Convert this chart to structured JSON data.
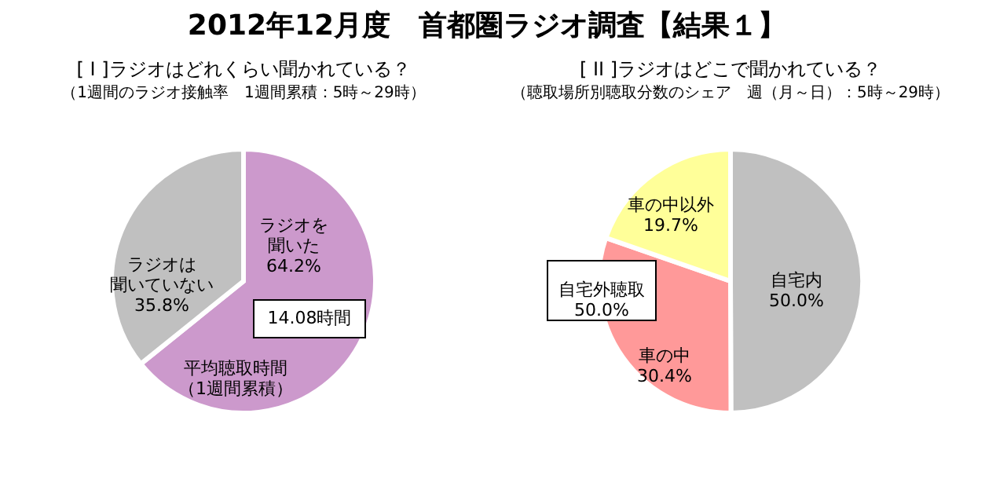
{
  "chart_data": [
    {
      "type": "pie",
      "title": "[ I ]ラジオはどれくらい聞かれている？",
      "subtitle": "（1週間のラジオ接触率　1週間累積：5時～29時）",
      "categories": [
        "ラジオを聞いた",
        "ラジオは聞いていない"
      ],
      "values": [
        64.2,
        35.8
      ],
      "colors": [
        "#cc99cc",
        "#c0c0c0"
      ],
      "value_labels": [
        "64.2%",
        "35.8%"
      ],
      "legend": false,
      "annotations": [
        "2012年12月度　首都圏ラジオ調査【結果１】",
        "14.08時間",
        "平均聴取時間（1週間累積）"
      ]
    },
    {
      "type": "pie",
      "title": "[ II ]ラジオはどこで聞かれている？",
      "subtitle": "（聴取場所別聴取分数のシェア　週（月～日）：5時～29時）",
      "categories": [
        "自宅内",
        "車の中",
        "車の中以外"
      ],
      "values": [
        50.0,
        30.4,
        19.7
      ],
      "colors": [
        "#c0c0c0",
        "#ff9999",
        "#ffff99"
      ],
      "value_labels": [
        "50.0%",
        "30.4%",
        "19.7%"
      ],
      "legend": false,
      "annotations": [
        "自宅外聴取\n50.0%"
      ]
    }
  ]
}
